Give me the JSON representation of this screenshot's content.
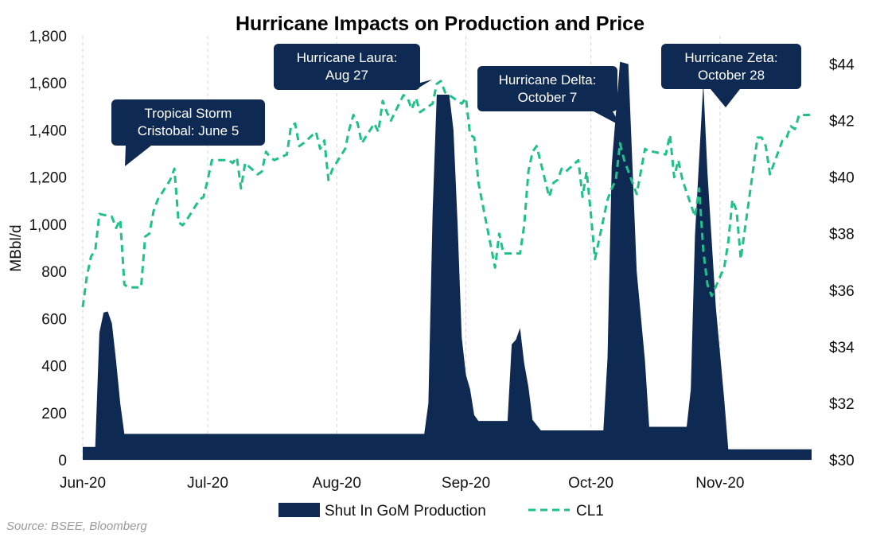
{
  "chart_data": {
    "type": "area+line",
    "title": "Hurricane Impacts on Production and Price",
    "ylabel": "MBbl/d",
    "ylim": [
      0,
      1800
    ],
    "y_ticks": [
      "0",
      "200",
      "400",
      "600",
      "800",
      "1,000",
      "1,200",
      "1,400",
      "1,600",
      "1,800"
    ],
    "y2lim": [
      30,
      45
    ],
    "y2_ticks": [
      "$30",
      "$32",
      "$34",
      "$36",
      "$38",
      "$40",
      "$42",
      "$44"
    ],
    "x_ticks": [
      "Jun-20",
      "Jul-20",
      "Aug-20",
      "Sep-20",
      "Oct-20",
      "Nov-20"
    ],
    "grid": "vertical dashed",
    "legend_position": "bottom",
    "source": "Source: BSEE, Bloomberg",
    "colors": {
      "production": "#0e2a52",
      "price": "#1fc08c",
      "callout": "#0e2a52"
    },
    "series": [
      {
        "name": "Shut In GoM Production",
        "kind": "area",
        "axis": "left",
        "points": [
          [
            "2020-06-01",
            55
          ],
          [
            "2020-06-04",
            55
          ],
          [
            "2020-06-05",
            540
          ],
          [
            "2020-06-06",
            625
          ],
          [
            "2020-06-07",
            630
          ],
          [
            "2020-06-08",
            580
          ],
          [
            "2020-06-09",
            420
          ],
          [
            "2020-06-10",
            240
          ],
          [
            "2020-06-11",
            110
          ],
          [
            "2020-08-22",
            110
          ],
          [
            "2020-08-23",
            240
          ],
          [
            "2020-08-24",
            1050
          ],
          [
            "2020-08-25",
            1550
          ],
          [
            "2020-08-28",
            1550
          ],
          [
            "2020-08-29",
            1400
          ],
          [
            "2020-08-30",
            1000
          ],
          [
            "2020-08-31",
            520
          ],
          [
            "2020-09-01",
            360
          ],
          [
            "2020-09-02",
            300
          ],
          [
            "2020-09-03",
            190
          ],
          [
            "2020-09-04",
            165
          ],
          [
            "2020-09-11",
            165
          ],
          [
            "2020-09-12",
            490
          ],
          [
            "2020-09-13",
            510
          ],
          [
            "2020-09-14",
            560
          ],
          [
            "2020-09-15",
            410
          ],
          [
            "2020-09-16",
            310
          ],
          [
            "2020-09-17",
            170
          ],
          [
            "2020-09-19",
            125
          ],
          [
            "2020-10-04",
            125
          ],
          [
            "2020-10-05",
            430
          ],
          [
            "2020-10-06",
            1250
          ],
          [
            "2020-10-08",
            1690
          ],
          [
            "2020-10-10",
            1680
          ],
          [
            "2020-10-12",
            800
          ],
          [
            "2020-10-14",
            420
          ],
          [
            "2020-10-15",
            140
          ],
          [
            "2020-10-24",
            140
          ],
          [
            "2020-10-25",
            300
          ],
          [
            "2020-10-26",
            950
          ],
          [
            "2020-10-28",
            1600
          ],
          [
            "2020-10-29",
            1220
          ],
          [
            "2020-10-31",
            650
          ],
          [
            "2020-11-02",
            260
          ],
          [
            "2020-11-03",
            45
          ],
          [
            "2020-11-23",
            45
          ]
        ]
      },
      {
        "name": "CL1",
        "kind": "dashed-line",
        "axis": "right",
        "points": [
          [
            "2020-06-01",
            35.4
          ],
          [
            "2020-06-02",
            36.5
          ],
          [
            "2020-06-03",
            37.2
          ],
          [
            "2020-06-04",
            37.4
          ],
          [
            "2020-06-05",
            38.7
          ],
          [
            "2020-06-08",
            38.6
          ],
          [
            "2020-06-09",
            38.2
          ],
          [
            "2020-06-10",
            38.5
          ],
          [
            "2020-06-11",
            36.2
          ],
          [
            "2020-06-12",
            36.1
          ],
          [
            "2020-06-15",
            36.1
          ],
          [
            "2020-06-16",
            37.9
          ],
          [
            "2020-06-17",
            38.0
          ],
          [
            "2020-06-18",
            38.8
          ],
          [
            "2020-06-19",
            39.2
          ],
          [
            "2020-06-22",
            39.9
          ],
          [
            "2020-06-23",
            40.3
          ],
          [
            "2020-06-24",
            38.4
          ],
          [
            "2020-06-25",
            38.3
          ],
          [
            "2020-06-26",
            38.5
          ],
          [
            "2020-06-29",
            39.2
          ],
          [
            "2020-06-30",
            39.3
          ],
          [
            "2020-07-01",
            39.9
          ],
          [
            "2020-07-02",
            40.6
          ],
          [
            "2020-07-06",
            40.6
          ],
          [
            "2020-07-07",
            40.5
          ],
          [
            "2020-07-08",
            40.7
          ],
          [
            "2020-07-09",
            39.6
          ],
          [
            "2020-07-10",
            40.5
          ],
          [
            "2020-07-13",
            40.1
          ],
          [
            "2020-07-14",
            40.2
          ],
          [
            "2020-07-15",
            40.9
          ],
          [
            "2020-07-16",
            40.7
          ],
          [
            "2020-07-17",
            40.6
          ],
          [
            "2020-07-20",
            40.8
          ],
          [
            "2020-07-21",
            41.8
          ],
          [
            "2020-07-22",
            41.9
          ],
          [
            "2020-07-23",
            41.1
          ],
          [
            "2020-07-24",
            41.2
          ],
          [
            "2020-07-27",
            41.6
          ],
          [
            "2020-07-28",
            41.0
          ],
          [
            "2020-07-29",
            41.3
          ],
          [
            "2020-07-30",
            39.9
          ],
          [
            "2020-07-31",
            40.3
          ],
          [
            "2020-08-03",
            41.0
          ],
          [
            "2020-08-04",
            41.7
          ],
          [
            "2020-08-05",
            42.2
          ],
          [
            "2020-08-06",
            41.9
          ],
          [
            "2020-08-07",
            41.2
          ],
          [
            "2020-08-10",
            41.9
          ],
          [
            "2020-08-11",
            41.6
          ],
          [
            "2020-08-12",
            42.7
          ],
          [
            "2020-08-13",
            42.3
          ],
          [
            "2020-08-14",
            42.0
          ],
          [
            "2020-08-17",
            42.9
          ],
          [
            "2020-08-18",
            42.8
          ],
          [
            "2020-08-19",
            42.4
          ],
          [
            "2020-08-20",
            42.8
          ],
          [
            "2020-08-21",
            42.3
          ],
          [
            "2020-08-24",
            42.6
          ],
          [
            "2020-08-25",
            43.3
          ],
          [
            "2020-08-26",
            43.4
          ],
          [
            "2020-08-27",
            43.0
          ],
          [
            "2020-08-28",
            42.9
          ],
          [
            "2020-08-31",
            42.6
          ],
          [
            "2020-09-01",
            42.8
          ],
          [
            "2020-09-02",
            41.5
          ],
          [
            "2020-09-03",
            41.4
          ],
          [
            "2020-09-04",
            39.8
          ],
          [
            "2020-09-08",
            36.8
          ],
          [
            "2020-09-09",
            38.0
          ],
          [
            "2020-09-10",
            37.3
          ],
          [
            "2020-09-11",
            37.3
          ],
          [
            "2020-09-14",
            37.3
          ],
          [
            "2020-09-15",
            38.3
          ],
          [
            "2020-09-16",
            40.2
          ],
          [
            "2020-09-17",
            40.9
          ],
          [
            "2020-09-18",
            41.1
          ],
          [
            "2020-09-21",
            39.3
          ],
          [
            "2020-09-22",
            39.8
          ],
          [
            "2020-09-23",
            39.9
          ],
          [
            "2020-09-24",
            40.3
          ],
          [
            "2020-09-25",
            40.2
          ],
          [
            "2020-09-28",
            40.6
          ],
          [
            "2020-09-29",
            39.3
          ],
          [
            "2020-09-30",
            40.2
          ],
          [
            "2020-10-01",
            38.7
          ],
          [
            "2020-10-02",
            37.1
          ],
          [
            "2020-10-05",
            39.2
          ],
          [
            "2020-10-06",
            39.6
          ],
          [
            "2020-10-07",
            39.9
          ],
          [
            "2020-10-08",
            41.2
          ],
          [
            "2020-10-09",
            40.6
          ],
          [
            "2020-10-12",
            39.4
          ],
          [
            "2020-10-13",
            40.2
          ],
          [
            "2020-10-14",
            41.0
          ],
          [
            "2020-10-15",
            40.9
          ],
          [
            "2020-10-16",
            40.9
          ],
          [
            "2020-10-19",
            40.8
          ],
          [
            "2020-10-20",
            41.5
          ],
          [
            "2020-10-21",
            40.0
          ],
          [
            "2020-10-22",
            40.6
          ],
          [
            "2020-10-23",
            39.9
          ],
          [
            "2020-10-26",
            38.6
          ],
          [
            "2020-10-27",
            39.6
          ],
          [
            "2020-10-28",
            37.4
          ],
          [
            "2020-10-29",
            36.2
          ],
          [
            "2020-10-30",
            35.8
          ],
          [
            "2020-11-02",
            36.8
          ],
          [
            "2020-11-03",
            37.7
          ],
          [
            "2020-11-04",
            39.2
          ],
          [
            "2020-11-05",
            38.8
          ],
          [
            "2020-11-06",
            37.1
          ],
          [
            "2020-11-09",
            40.3
          ],
          [
            "2020-11-10",
            41.4
          ],
          [
            "2020-11-11",
            41.4
          ],
          [
            "2020-11-12",
            41.1
          ],
          [
            "2020-11-13",
            40.1
          ],
          [
            "2020-11-16",
            41.3
          ],
          [
            "2020-11-17",
            41.4
          ],
          [
            "2020-11-18",
            41.8
          ],
          [
            "2020-11-19",
            41.7
          ],
          [
            "2020-11-20",
            42.2
          ],
          [
            "2020-11-23",
            42.2
          ]
        ]
      }
    ],
    "annotations": [
      {
        "lines": [
          "Tropical Storm",
          "Cristobal: June 5"
        ],
        "points_to": "2020-06-05"
      },
      {
        "lines": [
          "Hurricane Laura:",
          "Aug 27"
        ],
        "points_to": "2020-08-27"
      },
      {
        "lines": [
          "Hurricane Delta:",
          "October 7"
        ],
        "points_to": "2020-10-07"
      },
      {
        "lines": [
          "Hurricane Zeta:",
          "October 28"
        ],
        "points_to": "2020-10-28"
      }
    ]
  }
}
